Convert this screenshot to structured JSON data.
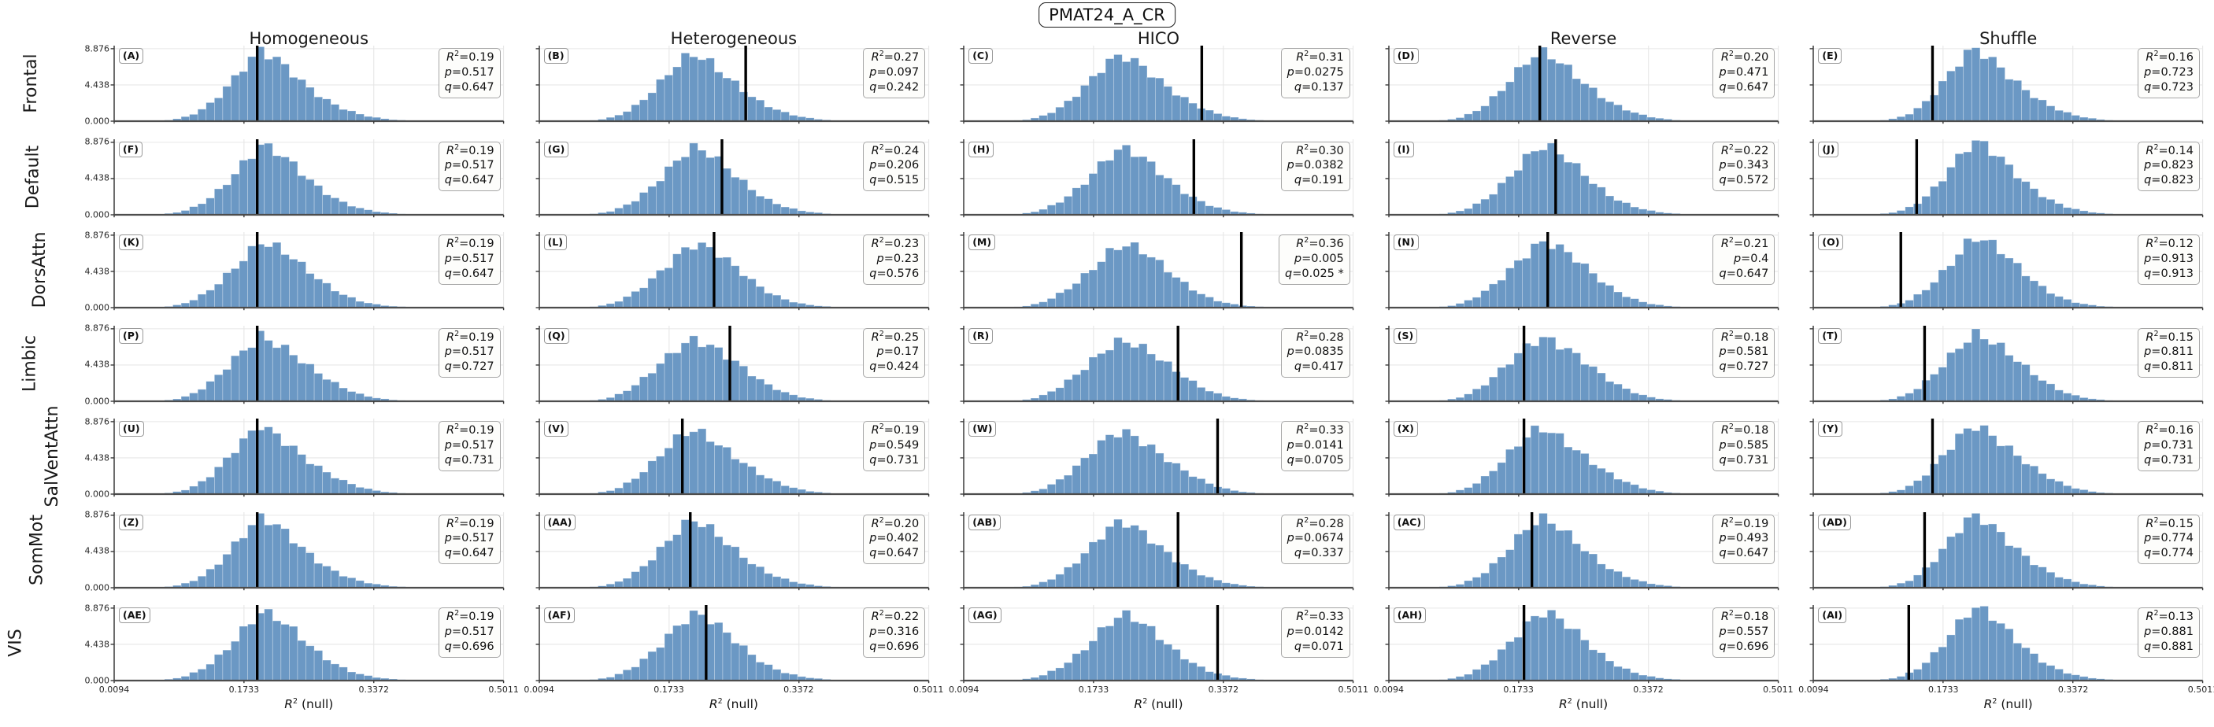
{
  "colors": {
    "bar": "#6b98c4",
    "bar_edge": "rgba(255,255,255,0.40)",
    "observed_line": "#000000",
    "grid_line": "#e7e7e7",
    "spine": "#3a3a3a",
    "bottom_spine": "#4d4d4d",
    "tick_mark": "#3a3a3a",
    "box_border": "#a6a6a6",
    "box_bg": "#fdfdfb"
  },
  "chart_data": {
    "type": "histogram-grid",
    "title": "PMAT24_A_CR",
    "column_titles": [
      "Homogeneous",
      "Heterogeneous",
      "HICO",
      "Reverse",
      "Shuffle"
    ],
    "row_labels": [
      "Frontal",
      "Default",
      "DorsAttn",
      "Limbic",
      "SalVentAttn",
      "SomMot",
      "VIS"
    ],
    "x_axis": {
      "label_var": "R",
      "label_sup": "2",
      "label_rest": " (null)",
      "ticks": [
        "0.0094",
        "0.1733",
        "0.3372",
        "0.5011"
      ],
      "tick_values": [
        0.0094,
        0.1733,
        0.3372,
        0.5011
      ],
      "min": 0.0094,
      "max": 0.5011,
      "grid": true
    },
    "y_axis": {
      "ticks": [
        "0.000",
        "4.438",
        "8.876"
      ],
      "tick_values": [
        0,
        4.438,
        8.876
      ],
      "max": 9.25,
      "grid": true
    },
    "stat_labels": {
      "r2_var": "R",
      "r2_sup": "2",
      "eq": "=",
      "p_var": "p",
      "q_var": "q"
    },
    "panels": [
      [
        {
          "label": "(A)",
          "r2": "0.19",
          "p": "0.517",
          "q": "0.647",
          "sig": ""
        },
        {
          "label": "(B)",
          "r2": "0.27",
          "p": "0.097",
          "q": "0.242",
          "sig": ""
        },
        {
          "label": "(C)",
          "r2": "0.31",
          "p": "0.0275",
          "q": "0.137",
          "sig": ""
        },
        {
          "label": "(D)",
          "r2": "0.20",
          "p": "0.471",
          "q": "0.647",
          "sig": ""
        },
        {
          "label": "(E)",
          "r2": "0.16",
          "p": "0.723",
          "q": "0.723",
          "sig": ""
        }
      ],
      [
        {
          "label": "(F)",
          "r2": "0.19",
          "p": "0.517",
          "q": "0.647",
          "sig": ""
        },
        {
          "label": "(G)",
          "r2": "0.24",
          "p": "0.206",
          "q": "0.515",
          "sig": ""
        },
        {
          "label": "(H)",
          "r2": "0.30",
          "p": "0.0382",
          "q": "0.191",
          "sig": ""
        },
        {
          "label": "(I)",
          "r2": "0.22",
          "p": "0.343",
          "q": "0.572",
          "sig": ""
        },
        {
          "label": "(J)",
          "r2": "0.14",
          "p": "0.823",
          "q": "0.823",
          "sig": ""
        }
      ],
      [
        {
          "label": "(K)",
          "r2": "0.19",
          "p": "0.517",
          "q": "0.647",
          "sig": ""
        },
        {
          "label": "(L)",
          "r2": "0.23",
          "p": "0.23",
          "q": "0.576",
          "sig": ""
        },
        {
          "label": "(M)",
          "r2": "0.36",
          "p": "0.005",
          "q": "0.025",
          "sig": " *"
        },
        {
          "label": "(N)",
          "r2": "0.21",
          "p": "0.4",
          "q": "0.647",
          "sig": ""
        },
        {
          "label": "(O)",
          "r2": "0.12",
          "p": "0.913",
          "q": "0.913",
          "sig": ""
        }
      ],
      [
        {
          "label": "(P)",
          "r2": "0.19",
          "p": "0.517",
          "q": "0.727",
          "sig": ""
        },
        {
          "label": "(Q)",
          "r2": "0.25",
          "p": "0.17",
          "q": "0.424",
          "sig": ""
        },
        {
          "label": "(R)",
          "r2": "0.28",
          "p": "0.0835",
          "q": "0.417",
          "sig": ""
        },
        {
          "label": "(S)",
          "r2": "0.18",
          "p": "0.581",
          "q": "0.727",
          "sig": ""
        },
        {
          "label": "(T)",
          "r2": "0.15",
          "p": "0.811",
          "q": "0.811",
          "sig": ""
        }
      ],
      [
        {
          "label": "(U)",
          "r2": "0.19",
          "p": "0.517",
          "q": "0.731",
          "sig": ""
        },
        {
          "label": "(V)",
          "r2": "0.19",
          "p": "0.549",
          "q": "0.731",
          "sig": ""
        },
        {
          "label": "(W)",
          "r2": "0.33",
          "p": "0.0141",
          "q": "0.0705",
          "sig": ""
        },
        {
          "label": "(X)",
          "r2": "0.18",
          "p": "0.585",
          "q": "0.731",
          "sig": ""
        },
        {
          "label": "(Y)",
          "r2": "0.16",
          "p": "0.731",
          "q": "0.731",
          "sig": ""
        }
      ],
      [
        {
          "label": "(Z)",
          "r2": "0.19",
          "p": "0.517",
          "q": "0.647",
          "sig": ""
        },
        {
          "label": "(AA)",
          "r2": "0.20",
          "p": "0.402",
          "q": "0.647",
          "sig": ""
        },
        {
          "label": "(AB)",
          "r2": "0.28",
          "p": "0.0674",
          "q": "0.337",
          "sig": ""
        },
        {
          "label": "(AC)",
          "r2": "0.19",
          "p": "0.493",
          "q": "0.647",
          "sig": ""
        },
        {
          "label": "(AD)",
          "r2": "0.15",
          "p": "0.774",
          "q": "0.774",
          "sig": ""
        }
      ],
      [
        {
          "label": "(AE)",
          "r2": "0.19",
          "p": "0.517",
          "q": "0.696",
          "sig": ""
        },
        {
          "label": "(AF)",
          "r2": "0.22",
          "p": "0.316",
          "q": "0.696",
          "sig": ""
        },
        {
          "label": "(AG)",
          "r2": "0.33",
          "p": "0.0142",
          "q": "0.071",
          "sig": ""
        },
        {
          "label": "(AH)",
          "r2": "0.18",
          "p": "0.557",
          "q": "0.696",
          "sig": ""
        },
        {
          "label": "(AI)",
          "r2": "0.13",
          "p": "0.881",
          "q": "0.881",
          "sig": ""
        }
      ]
    ],
    "null_histograms": {
      "bins_start": 0.052,
      "bin_width": 0.0105,
      "per_column": [
        [
          0.03,
          0.07,
          0.15,
          0.3,
          0.55,
          0.95,
          1.5,
          2.2,
          3.1,
          4.1,
          5.2,
          6.3,
          7.3,
          8.4,
          7.9,
          7.4,
          6.7,
          5.9,
          5.0,
          4.2,
          3.4,
          2.7,
          2.1,
          1.6,
          1.2,
          0.85,
          0.6,
          0.42,
          0.28,
          0.18,
          0.12,
          0.07,
          0.045,
          0.03,
          0.015,
          0.01
        ],
        [
          0.03,
          0.06,
          0.12,
          0.25,
          0.45,
          0.8,
          1.3,
          1.9,
          2.7,
          3.6,
          4.6,
          5.6,
          6.6,
          7.4,
          7.9,
          7.6,
          7.1,
          6.4,
          5.6,
          4.8,
          4.0,
          3.2,
          2.5,
          1.9,
          1.45,
          1.05,
          0.75,
          0.52,
          0.36,
          0.24,
          0.15,
          0.09,
          0.06,
          0.035,
          0.02,
          0.01
        ],
        [
          0.02,
          0.05,
          0.1,
          0.2,
          0.4,
          0.7,
          1.15,
          1.7,
          2.4,
          3.2,
          4.1,
          5.1,
          6.1,
          7.0,
          7.6,
          7.7,
          7.3,
          6.7,
          6.0,
          5.2,
          4.4,
          3.6,
          2.9,
          2.25,
          1.7,
          1.25,
          0.9,
          0.63,
          0.43,
          0.29,
          0.19,
          0.12,
          0.075,
          0.045,
          0.025,
          0.015
        ],
        [
          0.025,
          0.06,
          0.12,
          0.25,
          0.48,
          0.85,
          1.35,
          2.0,
          2.85,
          3.8,
          4.85,
          5.9,
          6.9,
          7.7,
          8.1,
          7.8,
          7.2,
          6.5,
          5.7,
          4.85,
          4.0,
          3.2,
          2.5,
          1.92,
          1.44,
          1.05,
          0.74,
          0.5,
          0.34,
          0.22,
          0.14,
          0.085,
          0.05,
          0.03,
          0.018,
          0.01
        ],
        [
          0.0,
          0.01,
          0.03,
          0.07,
          0.15,
          0.3,
          0.55,
          0.95,
          1.55,
          2.35,
          3.35,
          4.5,
          5.7,
          6.9,
          8.0,
          8.6,
          8.2,
          7.5,
          6.7,
          5.8,
          4.9,
          4.0,
          3.2,
          2.5,
          1.9,
          1.4,
          1.0,
          0.7,
          0.48,
          0.32,
          0.2,
          0.13,
          0.08,
          0.05,
          0.03,
          0.015
        ]
      ]
    }
  }
}
